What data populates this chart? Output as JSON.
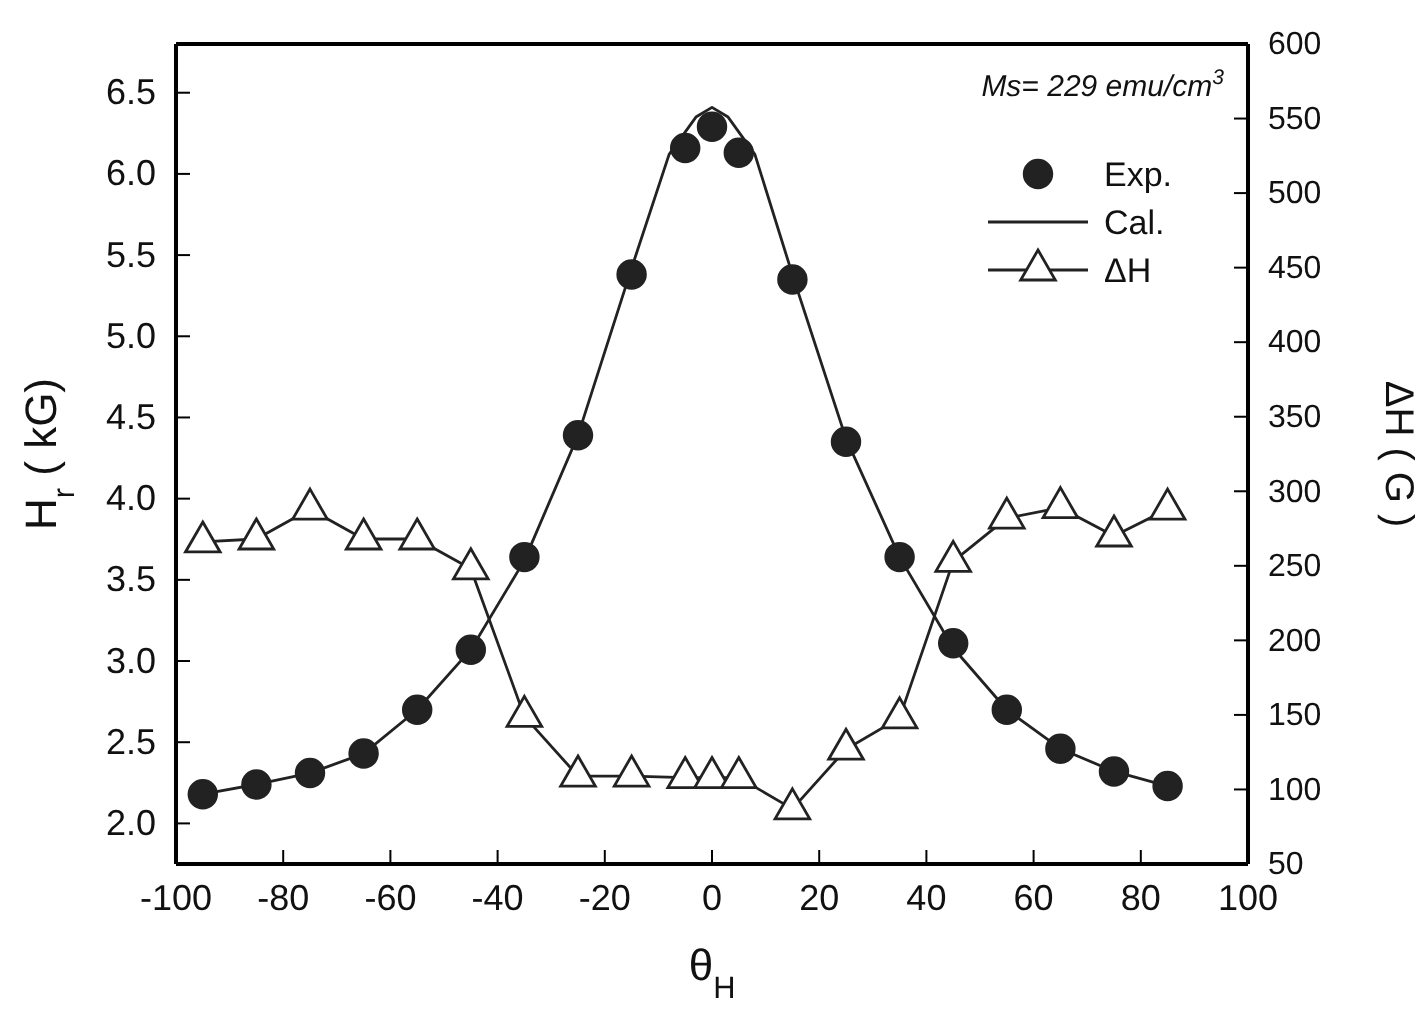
{
  "chart_data": {
    "type": "scatter",
    "xlabel": "θ$_{H}$",
    "ylabel": "H$_{r}$ ( kG)",
    "y2label": "ΔH ( G )",
    "annotations": [
      "Ms= 229 emu/cm$^{3}$"
    ],
    "xlim": [
      -100,
      100
    ],
    "xticks": [
      -100,
      -80,
      -60,
      -40,
      -20,
      0,
      20,
      40,
      60,
      80,
      100
    ],
    "ylim": [
      1.75,
      6.8
    ],
    "yticks": [
      {
        "value": 2,
        "label": "2.0"
      },
      2.5,
      {
        "value": 3,
        "label": "3.0"
      },
      3.5,
      {
        "value": 4,
        "label": "4.0"
      },
      4.5,
      {
        "value": 5,
        "label": "5.0"
      },
      5.5,
      {
        "value": 6,
        "label": "6.0"
      },
      6.5
    ],
    "y2lim": [
      50,
      600
    ],
    "y2ticks": [
      50,
      100,
      150,
      200,
      250,
      300,
      350,
      400,
      450,
      500,
      550,
      600
    ],
    "legend": "top right",
    "grid": false,
    "series": [
      {
        "name": "Exp.",
        "type": "scatter",
        "marker": "circle",
        "color": "#222222",
        "x": [
          -95,
          -85,
          -75,
          -65,
          -55,
          -45,
          -35,
          -25,
          -15,
          -5,
          0,
          5,
          15,
          25,
          35,
          45,
          55,
          65,
          75,
          85
        ],
        "values": [
          2.18,
          2.24,
          2.31,
          2.43,
          2.7,
          3.07,
          3.64,
          4.39,
          5.38,
          6.16,
          6.29,
          6.13,
          5.35,
          4.35,
          3.64,
          3.11,
          2.7,
          2.46,
          2.32,
          2.23
        ]
      },
      {
        "name": "Cal.",
        "type": "line",
        "marker": "none",
        "line_style": "solid",
        "color": "#222222",
        "x": [
          -95,
          -85,
          -75,
          -65,
          -55,
          -45,
          -35,
          -25,
          -15,
          -8,
          -3,
          0,
          3,
          8,
          15,
          25,
          35,
          45,
          55,
          65,
          75,
          85
        ],
        "values": [
          2.18,
          2.24,
          2.31,
          2.43,
          2.7,
          3.07,
          3.62,
          4.39,
          5.42,
          6.12,
          6.35,
          6.41,
          6.35,
          6.12,
          5.38,
          4.37,
          3.64,
          3.08,
          2.7,
          2.46,
          2.32,
          2.23
        ]
      },
      {
        "name": "ΔH",
        "type": "line",
        "marker": "triangle",
        "line_style": "solid",
        "axis": "y2",
        "color": "#222222",
        "x": [
          -95,
          -85,
          -75,
          -65,
          -55,
          -45,
          -35,
          -25,
          -15,
          -5,
          0,
          5,
          15,
          25,
          35,
          45,
          55,
          65,
          75,
          85
        ],
        "values": [
          266,
          268,
          288,
          268,
          268,
          248,
          149,
          109,
          109,
          108,
          108,
          108,
          87,
          127,
          148,
          253,
          282,
          289,
          270,
          288
        ]
      }
    ]
  }
}
